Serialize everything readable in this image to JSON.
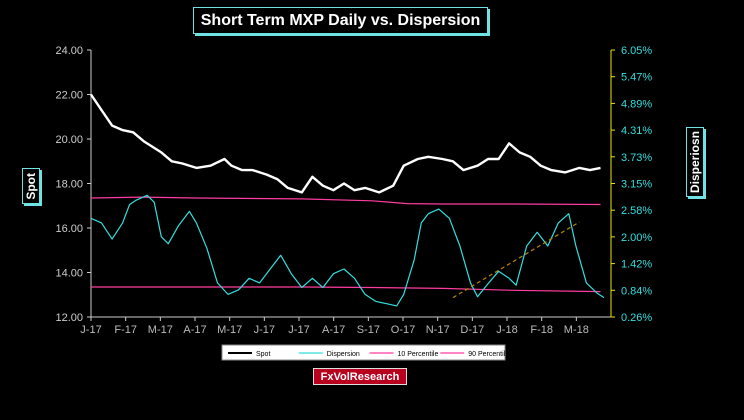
{
  "title": "Short Term MXP Daily vs. Dispersion",
  "left_axis_title": "Spot",
  "right_axis_title": "Disperiosn",
  "source": "FxVolResearch",
  "colors": {
    "spot": "#ffffff",
    "dispersion": "#33dede",
    "p10": "#ff3ca0",
    "p90": "#ff3ca0",
    "trend": "#b8860b",
    "left_axis": "#cccccc",
    "right_axis": "#e6e600",
    "right_tick": "#33dede"
  },
  "chart_data": {
    "type": "line",
    "x_ticks": [
      "J-17",
      "F-17",
      "M-17",
      "A-17",
      "M-17",
      "J-17",
      "J-17",
      "A-17",
      "S-17",
      "O-17",
      "N-17",
      "D-17",
      "J-18",
      "F-18",
      "M-18"
    ],
    "left_axis": {
      "range": [
        12,
        24
      ],
      "ticks": [
        "12.00",
        "14.00",
        "16.00",
        "18.00",
        "20.00",
        "22.00",
        "24.00"
      ]
    },
    "right_axis": {
      "range": [
        0.26,
        6.05
      ],
      "ticks": [
        "0.26%",
        "0.84%",
        "1.42%",
        "2.00%",
        "2.58%",
        "3.15%",
        "3.73%",
        "4.31%",
        "4.89%",
        "5.47%",
        "6.05%"
      ]
    },
    "x_range": [
      0,
      14.8
    ],
    "series": [
      {
        "name": "Spot",
        "axis": "left",
        "x": [
          0,
          0.3,
          0.6,
          0.9,
          1.2,
          1.5,
          1.8,
          2.0,
          2.3,
          2.6,
          3.0,
          3.4,
          3.8,
          4.0,
          4.3,
          4.6,
          5.0,
          5.3,
          5.6,
          6.0,
          6.3,
          6.6,
          6.9,
          7.2,
          7.5,
          7.8,
          8.2,
          8.6,
          8.9,
          9.3,
          9.6,
          10.0,
          10.3,
          10.6,
          11.0,
          11.3,
          11.6,
          11.9,
          12.2,
          12.5,
          12.8,
          13.1,
          13.5,
          13.9,
          14.2,
          14.5
        ],
        "y": [
          22.0,
          21.3,
          20.6,
          20.4,
          20.3,
          19.9,
          19.6,
          19.4,
          19.0,
          18.9,
          18.7,
          18.8,
          19.1,
          18.8,
          18.6,
          18.6,
          18.4,
          18.2,
          17.8,
          17.6,
          18.3,
          17.9,
          17.7,
          18.0,
          17.7,
          17.8,
          17.6,
          17.9,
          18.8,
          19.1,
          19.2,
          19.1,
          19.0,
          18.6,
          18.8,
          19.1,
          19.1,
          19.8,
          19.4,
          19.2,
          18.8,
          18.6,
          18.5,
          18.7,
          18.6,
          18.7
        ]
      },
      {
        "name": "Dispersion",
        "axis": "right",
        "x": [
          0,
          0.3,
          0.6,
          0.9,
          1.1,
          1.3,
          1.6,
          1.8,
          2.0,
          2.2,
          2.5,
          2.8,
          3.0,
          3.3,
          3.6,
          3.9,
          4.2,
          4.5,
          4.8,
          5.1,
          5.4,
          5.7,
          6.0,
          6.3,
          6.6,
          6.9,
          7.2,
          7.5,
          7.8,
          8.1,
          8.4,
          8.7,
          8.9,
          9.2,
          9.4,
          9.6,
          9.9,
          10.2,
          10.5,
          10.8,
          11.0,
          11.3,
          11.6,
          11.9,
          12.1,
          12.4,
          12.7,
          13.0,
          13.3,
          13.6,
          13.8,
          14.1,
          14.4,
          14.6
        ],
        "y": [
          2.4,
          2.3,
          1.95,
          2.3,
          2.7,
          2.8,
          2.9,
          2.75,
          2.0,
          1.85,
          2.25,
          2.55,
          2.3,
          1.75,
          1.0,
          0.75,
          0.85,
          1.1,
          1.0,
          1.3,
          1.6,
          1.2,
          0.9,
          1.1,
          0.9,
          1.2,
          1.3,
          1.1,
          0.75,
          0.6,
          0.55,
          0.5,
          0.75,
          1.5,
          2.3,
          2.5,
          2.6,
          2.4,
          1.8,
          1.0,
          0.7,
          0.98,
          1.25,
          1.1,
          0.95,
          1.8,
          2.1,
          1.8,
          2.3,
          2.5,
          1.8,
          1.0,
          0.78,
          0.68
        ]
      },
      {
        "name": "10 Percentile",
        "axis": "right",
        "x": [
          0,
          3,
          6,
          8,
          10,
          12,
          14.5
        ],
        "y": [
          0.91,
          0.91,
          0.91,
          0.9,
          0.88,
          0.84,
          0.81
        ]
      },
      {
        "name": "90 Percentile",
        "axis": "right",
        "x": [
          0,
          1.5,
          3,
          6,
          8,
          9,
          10,
          12,
          14.5
        ],
        "y": [
          2.84,
          2.86,
          2.84,
          2.82,
          2.78,
          2.72,
          2.71,
          2.71,
          2.7
        ]
      }
    ],
    "trend_line": {
      "axis": "right",
      "x": [
        10.3,
        13.9
      ],
      "y": [
        0.68,
        2.32
      ]
    },
    "legend": {
      "placement": "bottom",
      "entries": [
        "Spot",
        "Dispersion",
        "10 Percentile",
        "90 Percentile"
      ]
    }
  }
}
